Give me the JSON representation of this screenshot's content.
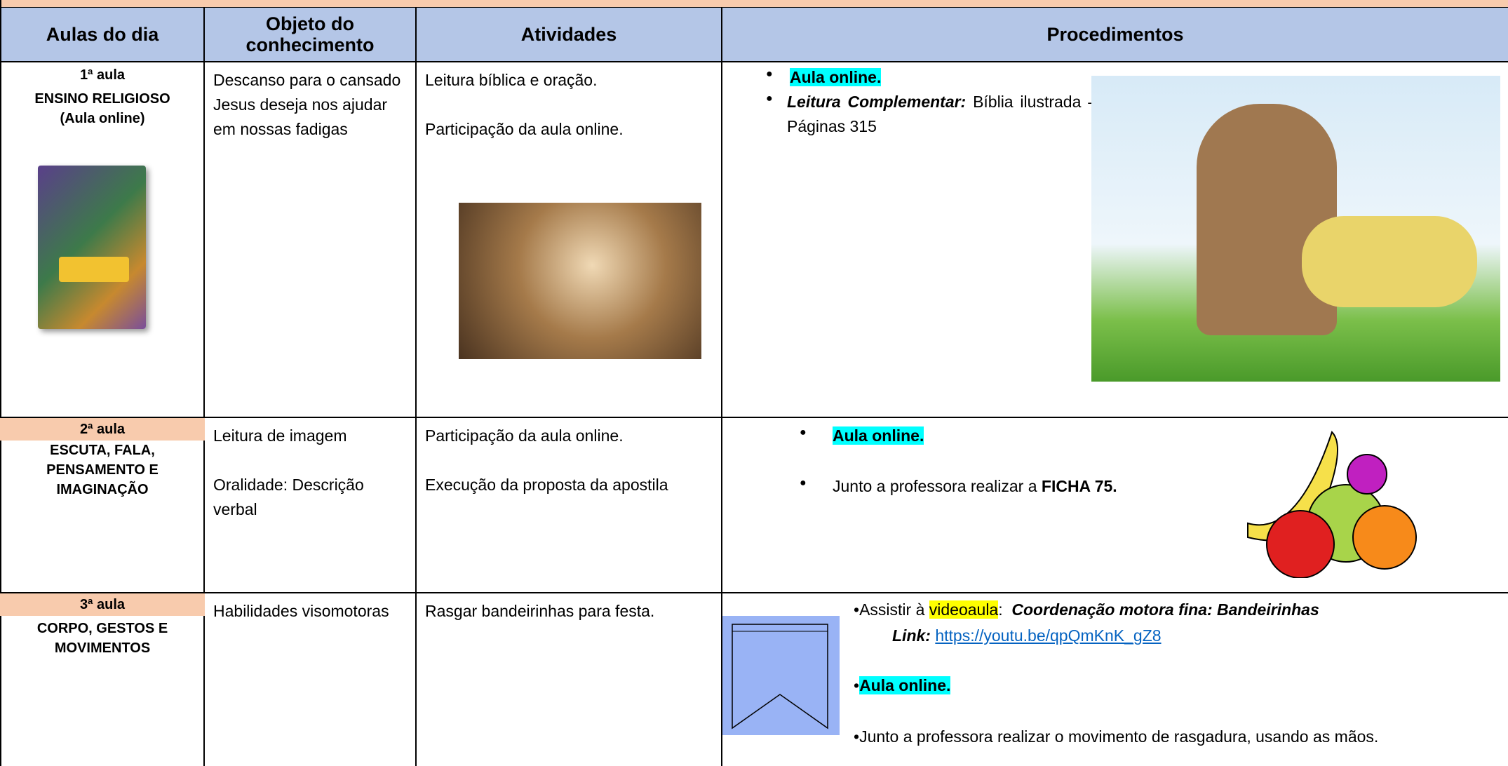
{
  "table": {
    "header": [
      "Aulas do dia",
      "Objeto do conhecimento",
      "Atividades",
      "Procedimentos"
    ],
    "rows": [
      {
        "aula": "1ª aula",
        "subject": "ENSINO RELIGIOSO",
        "note": "(Aula online)",
        "objeto": [
          "Descanso para o cansado",
          "Jesus deseja nos ajudar em nossas fadigas"
        ],
        "atividades": [
          "Leitura bíblica e oração.",
          "Participação da aula online."
        ],
        "procedimentos": [
          {
            "text": "Aula online."
          },
          {
            "label": "Leitura Complementar:",
            "text": "Bíblia ilustrada – Páginas 315"
          }
        ]
      },
      {
        "aula": "2ª aula",
        "subject": "ESCUTA, FALA, PENSAMENTO E IMAGINAÇÃO",
        "objeto": [
          "Leitura de imagem",
          "Oralidade: Descrição verbal"
        ],
        "atividades": [
          "Participação da aula online.",
          "Execução da proposta da apostila"
        ],
        "procedimentos": [
          {
            "text": "Aula online."
          },
          {
            "text": "Junto a professora realizar a",
            "bold": "FICHA 75."
          }
        ]
      },
      {
        "aula": "3ª aula",
        "subject": "CORPO, GESTOS E MOVIMENTOS",
        "objeto": [
          "Habilidades visomotoras"
        ],
        "atividades": [
          "Rasgar bandeirinhas para festa."
        ],
        "procedimentos": [
          {
            "text": "Assistir à",
            "highlight": "videoaula",
            "sep": ":",
            "title": "Coordenação motora fina: Bandeirinhas"
          },
          {
            "label": "Link:",
            "link": "https://youtu.be/qpQmKnK_gZ8"
          },
          {
            "text": "Aula online."
          },
          {
            "text": "Junto a professora realizar o movimento de rasgadura, usando as mãos."
          }
        ]
      }
    ]
  }
}
